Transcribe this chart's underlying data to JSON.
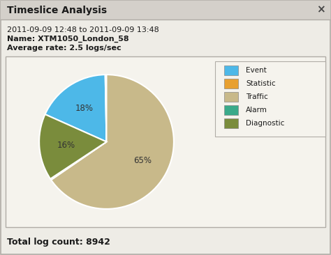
{
  "title": "Timeslice Analysis",
  "date_range": "2011-09-09 12:48 to 2011-09-09 13:48",
  "name_label": "Name: XTM1050_London_58",
  "avg_rate_label": "Average rate: 2.5 logs/sec",
  "total_count_label": "Total log count: 8942",
  "pie_labels": [
    "Event",
    "Statistic",
    "Traffic",
    "Alarm",
    "Diagnostic"
  ],
  "pie_values": [
    18,
    0.3,
    65.4,
    0.3,
    16
  ],
  "pie_colors": [
    "#4db8e8",
    "#e8a030",
    "#c8b98a",
    "#3aaa8a",
    "#7a8c3c"
  ],
  "legend_colors": [
    "#4db8e8",
    "#e8a030",
    "#c8b98a",
    "#3aaa8a",
    "#7a8c3c"
  ],
  "bg_color": "#eeece6",
  "title_bar_color": "#d4d0ca",
  "border_color": "#b0aca6",
  "chart_bg_color": "#f5f3ed"
}
